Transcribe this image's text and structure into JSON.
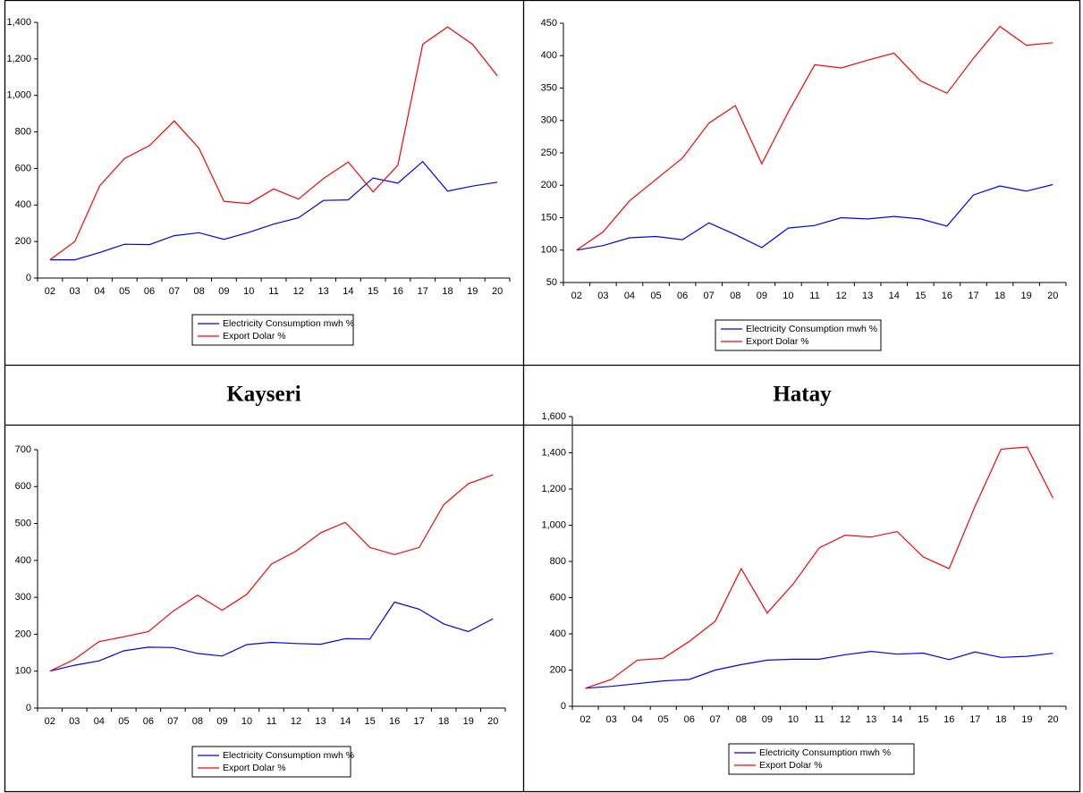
{
  "panel_labels": [
    "Kayseri",
    "Hatay"
  ],
  "chart_data": [
    {
      "type": "line",
      "categories": [
        "02",
        "03",
        "04",
        "05",
        "06",
        "07",
        "08",
        "09",
        "10",
        "11",
        "12",
        "13",
        "14",
        "15",
        "16",
        "17",
        "18",
        "19",
        "20"
      ],
      "series": [
        {
          "name": "Electricity Consumption mwh %",
          "color": "#0000ff",
          "values": [
            100,
            100,
            140,
            185,
            183,
            232,
            248,
            212,
            250,
            295,
            330,
            425,
            428,
            548,
            520,
            638,
            476,
            503,
            525
          ]
        },
        {
          "name": "Export Dolar %",
          "color": "#ff0000",
          "values": [
            100,
            200,
            505,
            655,
            725,
            860,
            710,
            420,
            408,
            488,
            432,
            545,
            635,
            472,
            618,
            1280,
            1375,
            1280,
            1108
          ]
        }
      ],
      "ylim": [
        0,
        1400
      ],
      "yticks": [
        0,
        200,
        400,
        600,
        800,
        {
          "value": 1000,
          "label": "1,000"
        },
        {
          "value": 1200,
          "label": "1,200"
        },
        {
          "value": 1400,
          "label": "1,400"
        }
      ]
    },
    {
      "type": "line",
      "categories": [
        "02",
        "03",
        "04",
        "05",
        "06",
        "07",
        "08",
        "09",
        "10",
        "11",
        "12",
        "13",
        "14",
        "15",
        "16",
        "17",
        "18",
        "19",
        "20"
      ],
      "series": [
        {
          "name": "Electricity Consumption mwh %",
          "color": "#0000ff",
          "values": [
            100,
            107,
            119,
            121,
            116,
            142,
            124,
            104,
            134,
            138,
            150,
            148,
            152,
            148,
            137,
            185,
            199,
            191,
            201
          ]
        },
        {
          "name": "Export Dolar %",
          "color": "#ff0000",
          "values": [
            100,
            128,
            176,
            209,
            242,
            296,
            323,
            233,
            313,
            386,
            381,
            393,
            404,
            361,
            342,
            396,
            445,
            416,
            420
          ]
        }
      ],
      "ylim": [
        50,
        450
      ],
      "yticks": [
        50,
        100,
        150,
        200,
        250,
        300,
        350,
        400,
        450
      ]
    },
    {
      "type": "line",
      "categories": [
        "02",
        "03",
        "04",
        "05",
        "06",
        "07",
        "08",
        "09",
        "10",
        "11",
        "12",
        "13",
        "14",
        "15",
        "16",
        "17",
        "18",
        "19",
        "20"
      ],
      "series": [
        {
          "name": "Electricity Consumption mwh %",
          "color": "#0000ff",
          "values": [
            100,
            116,
            128,
            155,
            165,
            164,
            148,
            141,
            172,
            178,
            175,
            173,
            188,
            187,
            287,
            268,
            228,
            207,
            242
          ]
        },
        {
          "name": "Export Dolar %",
          "color": "#ff0000",
          "values": [
            100,
            132,
            180,
            193,
            207,
            262,
            306,
            265,
            308,
            390,
            425,
            475,
            503,
            435,
            416,
            435,
            551,
            608,
            632
          ]
        }
      ],
      "ylim": [
        0,
        700
      ],
      "yticks": [
        0,
        100,
        200,
        300,
        400,
        500,
        600,
        700
      ]
    },
    {
      "type": "line",
      "categories": [
        "02",
        "03",
        "04",
        "05",
        "06",
        "07",
        "08",
        "09",
        "10",
        "11",
        "12",
        "13",
        "14",
        "15",
        "16",
        "17",
        "18",
        "19",
        "20"
      ],
      "series": [
        {
          "name": "Electricity Consumption mwh %",
          "color": "#0000ff",
          "values": [
            100,
            110,
            125,
            140,
            148,
            200,
            230,
            255,
            260,
            260,
            285,
            303,
            288,
            294,
            258,
            300,
            270,
            276,
            293
          ]
        },
        {
          "name": "Export Dolar %",
          "color": "#ff0000",
          "values": [
            100,
            148,
            255,
            265,
            358,
            470,
            760,
            515,
            675,
            875,
            945,
            935,
            965,
            825,
            760,
            1105,
            1420,
            1432,
            1150
          ]
        }
      ],
      "ylim": [
        0,
        1600
      ],
      "yticks": [
        0,
        200,
        400,
        600,
        800,
        {
          "value": 1000,
          "label": "1,000"
        },
        {
          "value": 1200,
          "label": "1,200"
        },
        {
          "value": 1400,
          "label": "1,400"
        },
        {
          "value": 1600,
          "label": "1,600"
        }
      ]
    }
  ]
}
